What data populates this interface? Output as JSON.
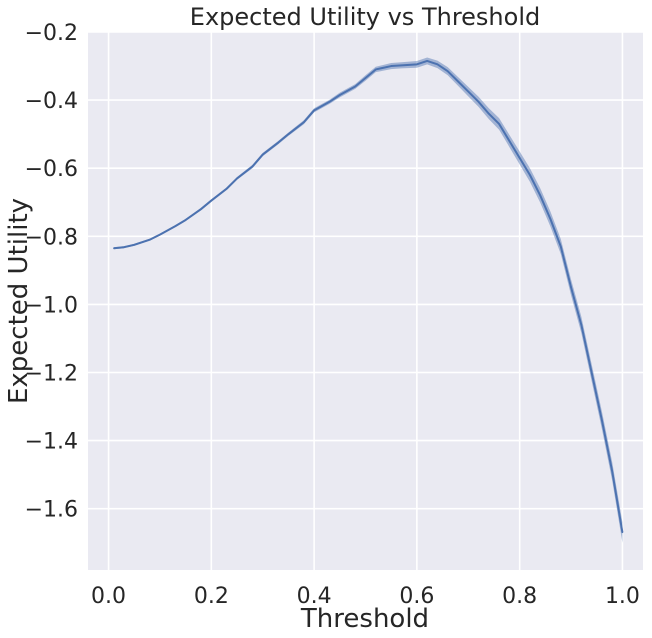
{
  "chart_data": {
    "type": "line",
    "title": "Expected Utility vs Threshold",
    "xlabel": "Threshold",
    "ylabel": "Expected Utility",
    "xlim": [
      -0.04,
      1.04
    ],
    "ylim": [
      -1.78,
      -0.2
    ],
    "xticks": [
      0.0,
      0.2,
      0.4,
      0.6,
      0.8,
      1.0
    ],
    "xtick_labels": [
      "0.0",
      "0.2",
      "0.4",
      "0.6",
      "0.8",
      "1.0"
    ],
    "yticks": [
      -0.2,
      -0.4,
      -0.6,
      -0.8,
      -1.0,
      -1.2,
      -1.4,
      -1.6
    ],
    "ytick_labels": [
      "−0.2",
      "−0.4",
      "−0.6",
      "−0.8",
      "−1.0",
      "−1.2",
      "−1.4",
      "−1.6"
    ],
    "grid": true,
    "style": "seaborn-darkgrid",
    "colors": {
      "background": "#eaeaf2",
      "grid": "#ffffff",
      "line": "#4c72b0",
      "band": "#4c72b0"
    },
    "series": [
      {
        "x": [
          0.01,
          0.03,
          0.05,
          0.08,
          0.1,
          0.13,
          0.15,
          0.18,
          0.2,
          0.23,
          0.25,
          0.28,
          0.3,
          0.33,
          0.35,
          0.38,
          0.4,
          0.43,
          0.45,
          0.48,
          0.5,
          0.52,
          0.55,
          0.57,
          0.6,
          0.62,
          0.64,
          0.66,
          0.68,
          0.7,
          0.72,
          0.74,
          0.76,
          0.78,
          0.8,
          0.82,
          0.84,
          0.86,
          0.88,
          0.9,
          0.92,
          0.94,
          0.96,
          0.98,
          1.0
        ],
        "y": [
          -0.835,
          -0.832,
          -0.825,
          -0.81,
          -0.795,
          -0.77,
          -0.752,
          -0.72,
          -0.695,
          -0.66,
          -0.63,
          -0.595,
          -0.56,
          -0.525,
          -0.5,
          -0.465,
          -0.43,
          -0.405,
          -0.385,
          -0.36,
          -0.335,
          -0.31,
          -0.3,
          -0.298,
          -0.295,
          -0.285,
          -0.295,
          -0.315,
          -0.345,
          -0.375,
          -0.405,
          -0.44,
          -0.47,
          -0.52,
          -0.57,
          -0.62,
          -0.68,
          -0.75,
          -0.83,
          -0.95,
          -1.06,
          -1.2,
          -1.34,
          -1.49,
          -1.67
        ],
        "ci_half_width": [
          0.003,
          0.003,
          0.003,
          0.003,
          0.003,
          0.003,
          0.003,
          0.004,
          0.004,
          0.004,
          0.004,
          0.005,
          0.005,
          0.005,
          0.005,
          0.006,
          0.006,
          0.006,
          0.007,
          0.007,
          0.008,
          0.008,
          0.009,
          0.009,
          0.01,
          0.01,
          0.011,
          0.012,
          0.013,
          0.014,
          0.015,
          0.016,
          0.017,
          0.018,
          0.019,
          0.02,
          0.021,
          0.022,
          0.022,
          0.023,
          0.024,
          0.025,
          0.026,
          0.027,
          0.03
        ]
      }
    ]
  }
}
